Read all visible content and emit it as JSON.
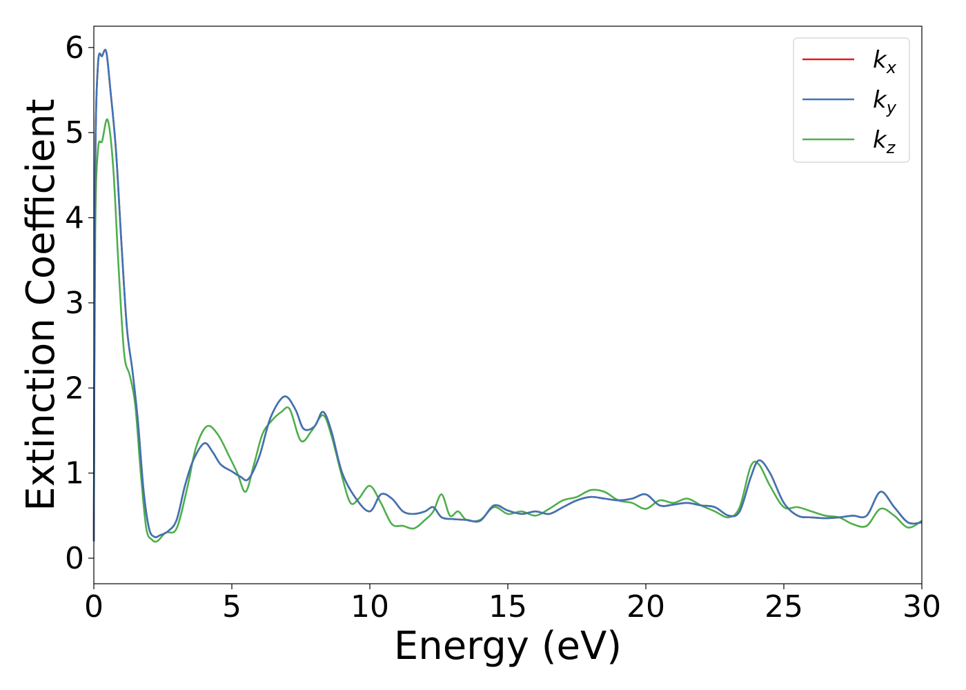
{
  "chart_data": {
    "type": "line",
    "xlabel": "Energy (eV)",
    "ylabel": "Extinction Coefficient",
    "xlim": [
      0,
      30
    ],
    "ylim": [
      -0.3,
      6.25
    ],
    "xticks": [
      0,
      5,
      10,
      15,
      20,
      25,
      30
    ],
    "yticks": [
      0,
      1,
      2,
      3,
      4,
      5,
      6
    ],
    "xtick_labels": [
      "0",
      "5",
      "10",
      "15",
      "20",
      "25",
      "30"
    ],
    "ytick_labels": [
      "0",
      "1",
      "2",
      "3",
      "4",
      "5",
      "6"
    ],
    "grid": false,
    "legend_position": "top-right",
    "series": [
      {
        "name": "k",
        "subscript": "x",
        "color": "#e41a1c",
        "x": [
          0,
          0.05,
          0.15,
          0.3,
          0.45,
          0.6,
          0.8,
          1.0,
          1.2,
          1.4,
          1.6,
          1.8,
          2.0,
          2.2,
          2.4,
          2.7,
          3.0,
          3.3,
          3.6,
          4.0,
          4.3,
          4.6,
          5.0,
          5.3,
          5.6,
          6.0,
          6.4,
          6.9,
          7.3,
          7.6,
          8.0,
          8.3,
          8.6,
          9.0,
          9.5,
          10.0,
          10.4,
          10.8,
          11.2,
          11.6,
          12.0,
          12.3,
          12.6,
          13.0,
          13.5,
          14.0,
          14.5,
          15.0,
          15.5,
          16.0,
          16.5,
          17.0,
          17.5,
          18.0,
          18.5,
          19.0,
          19.5,
          20.0,
          20.5,
          21.0,
          21.5,
          22.0,
          22.5,
          23.0,
          23.4,
          23.8,
          24.1,
          24.5,
          25.0,
          25.5,
          26.0,
          26.5,
          27.0,
          27.5,
          28.0,
          28.5,
          29.0,
          29.5,
          30.0
        ],
        "y": [
          0.2,
          4.5,
          5.8,
          5.9,
          5.95,
          5.5,
          4.8,
          3.7,
          2.7,
          2.2,
          1.6,
          0.8,
          0.35,
          0.25,
          0.27,
          0.32,
          0.45,
          0.85,
          1.15,
          1.35,
          1.25,
          1.1,
          1.02,
          0.96,
          0.93,
          1.2,
          1.65,
          1.9,
          1.75,
          1.52,
          1.55,
          1.72,
          1.5,
          1.0,
          0.7,
          0.55,
          0.75,
          0.7,
          0.55,
          0.52,
          0.55,
          0.6,
          0.48,
          0.46,
          0.45,
          0.44,
          0.62,
          0.56,
          0.52,
          0.55,
          0.52,
          0.6,
          0.68,
          0.72,
          0.7,
          0.68,
          0.7,
          0.75,
          0.62,
          0.63,
          0.65,
          0.62,
          0.6,
          0.5,
          0.55,
          0.95,
          1.15,
          1.0,
          0.65,
          0.5,
          0.48,
          0.47,
          0.48,
          0.5,
          0.5,
          0.78,
          0.6,
          0.42,
          0.42
        ]
      },
      {
        "name": "k",
        "subscript": "y",
        "color": "#3d74b5",
        "x": [
          0,
          0.05,
          0.15,
          0.3,
          0.45,
          0.6,
          0.8,
          1.0,
          1.2,
          1.4,
          1.6,
          1.8,
          2.0,
          2.2,
          2.4,
          2.7,
          3.0,
          3.3,
          3.6,
          4.0,
          4.3,
          4.6,
          5.0,
          5.3,
          5.6,
          6.0,
          6.4,
          6.9,
          7.3,
          7.6,
          8.0,
          8.3,
          8.6,
          9.0,
          9.5,
          10.0,
          10.4,
          10.8,
          11.2,
          11.6,
          12.0,
          12.3,
          12.6,
          13.0,
          13.5,
          14.0,
          14.5,
          15.0,
          15.5,
          16.0,
          16.5,
          17.0,
          17.5,
          18.0,
          18.5,
          19.0,
          19.5,
          20.0,
          20.5,
          21.0,
          21.5,
          22.0,
          22.5,
          23.0,
          23.4,
          23.8,
          24.1,
          24.5,
          25.0,
          25.5,
          26.0,
          26.5,
          27.0,
          27.5,
          28.0,
          28.5,
          29.0,
          29.5,
          30.0
        ],
        "y": [
          0.2,
          4.5,
          5.8,
          5.9,
          5.95,
          5.5,
          4.8,
          3.7,
          2.7,
          2.2,
          1.6,
          0.8,
          0.35,
          0.25,
          0.27,
          0.32,
          0.45,
          0.85,
          1.15,
          1.35,
          1.25,
          1.1,
          1.02,
          0.96,
          0.93,
          1.2,
          1.65,
          1.9,
          1.75,
          1.52,
          1.55,
          1.72,
          1.5,
          1.0,
          0.7,
          0.55,
          0.75,
          0.7,
          0.55,
          0.52,
          0.55,
          0.6,
          0.48,
          0.46,
          0.45,
          0.44,
          0.62,
          0.56,
          0.52,
          0.55,
          0.52,
          0.6,
          0.68,
          0.72,
          0.7,
          0.68,
          0.7,
          0.75,
          0.62,
          0.63,
          0.65,
          0.62,
          0.6,
          0.5,
          0.55,
          0.95,
          1.15,
          1.0,
          0.65,
          0.5,
          0.48,
          0.47,
          0.48,
          0.5,
          0.5,
          0.78,
          0.6,
          0.42,
          0.42
        ]
      },
      {
        "name": "k",
        "subscript": "z",
        "color": "#4daf4a",
        "x": [
          0,
          0.05,
          0.15,
          0.3,
          0.5,
          0.7,
          0.9,
          1.1,
          1.3,
          1.5,
          1.7,
          1.9,
          2.1,
          2.3,
          2.6,
          3.0,
          3.4,
          3.7,
          4.1,
          4.5,
          4.9,
          5.2,
          5.5,
          5.8,
          6.1,
          6.4,
          6.8,
          7.1,
          7.5,
          7.9,
          8.3,
          8.6,
          9.0,
          9.3,
          9.6,
          10.0,
          10.4,
          10.8,
          11.2,
          11.6,
          12.0,
          12.3,
          12.6,
          12.9,
          13.2,
          13.5,
          14.0,
          14.5,
          15.0,
          15.5,
          16.0,
          16.5,
          17.0,
          17.5,
          18.0,
          18.5,
          19.0,
          19.5,
          20.0,
          20.5,
          21.0,
          21.5,
          22.0,
          22.5,
          23.0,
          23.4,
          23.8,
          24.1,
          24.5,
          25.0,
          25.5,
          26.0,
          26.5,
          27.0,
          27.5,
          28.0,
          28.5,
          29.0,
          29.5,
          30.0
        ],
        "y": [
          0.2,
          3.8,
          4.8,
          4.9,
          5.15,
          4.6,
          3.4,
          2.4,
          2.15,
          1.8,
          1.0,
          0.35,
          0.22,
          0.2,
          0.3,
          0.35,
          0.85,
          1.3,
          1.55,
          1.45,
          1.2,
          1.0,
          0.78,
          1.1,
          1.45,
          1.6,
          1.72,
          1.75,
          1.38,
          1.5,
          1.68,
          1.45,
          0.95,
          0.65,
          0.7,
          0.85,
          0.65,
          0.4,
          0.38,
          0.35,
          0.45,
          0.55,
          0.75,
          0.5,
          0.55,
          0.45,
          0.45,
          0.6,
          0.52,
          0.55,
          0.5,
          0.58,
          0.68,
          0.72,
          0.8,
          0.78,
          0.68,
          0.65,
          0.58,
          0.68,
          0.65,
          0.7,
          0.62,
          0.55,
          0.48,
          0.6,
          1.08,
          1.1,
          0.85,
          0.6,
          0.6,
          0.55,
          0.5,
          0.48,
          0.4,
          0.38,
          0.58,
          0.5,
          0.36,
          0.44
        ]
      }
    ]
  }
}
